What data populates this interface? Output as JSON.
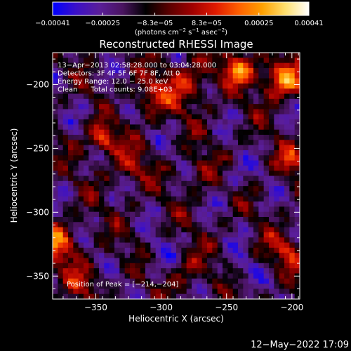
{
  "chart_data": {
    "type": "heatmap",
    "title": "Reconstructed RHESSI Image",
    "xlabel": "Heliocentric X (arcsec)",
    "ylabel": "Heliocentric Y (arcsec)",
    "xlim": [
      -383,
      -194
    ],
    "ylim": [
      -368,
      -175
    ],
    "x_ticks": [
      -350,
      -300,
      -250,
      -200
    ],
    "y_ticks": [
      -350,
      -300,
      -250,
      -200
    ],
    "x_tick_labels": [
      "−350",
      "−300",
      "−250",
      "−200"
    ],
    "y_tick_labels": [
      "−350",
      "−300",
      "−250",
      "−200"
    ],
    "colorbar": {
      "range": [
        -0.00041,
        0.00041
      ],
      "ticks": [
        -0.00041,
        -0.00025,
        -8.3e-05,
        8.3e-05,
        0.00025,
        0.00041
      ],
      "tick_labels": [
        "−0.00041",
        "−0.00025",
        "−8.3e−05",
        "8.3e−05",
        "0.00025",
        "0.00041"
      ],
      "units_html": "(photons cm<tspan baseline-shift='super' font-size='7'>−2</tspan> s<tspan baseline-shift='super' font-size='7'>−1</tspan> asec<tspan baseline-shift='super' font-size='7'>−2</tspan>)",
      "colormap": [
        "#0000ff",
        "#3b10c8",
        "#5a1e9a",
        "#4a1460",
        "#000000",
        "#5a0000",
        "#a00000",
        "#e01a00",
        "#ff6000",
        "#ffa000",
        "#ffe070",
        "#ffffff"
      ]
    },
    "info_lines": [
      "13−Apr−2013 02:58:28.000 to 03:04:28.000",
      "Detectors: 3F 4F 5F 6F 7F 8F, Att 0",
      "Energy Range: 12.0 − 25.0 keV",
      "Clean      Total counts: 9.08E+03"
    ],
    "peak_label": "Position of Peak = [−214,−204]",
    "peak_position": [
      -214,
      -204
    ],
    "hotspots": [
      {
        "x": -208,
        "y": -196,
        "value": 0.00041,
        "spread": 10
      },
      {
        "x": -240,
        "y": -188,
        "value": 0.00034,
        "spread": 9
      },
      {
        "x": -280,
        "y": -200,
        "value": 0.00024,
        "spread": 12
      },
      {
        "x": -310,
        "y": -210,
        "value": 0.00022,
        "spread": 11
      },
      {
        "x": -345,
        "y": -243,
        "value": 0.00032,
        "spread": 8
      },
      {
        "x": -380,
        "y": -325,
        "value": 0.0003,
        "spread": 12
      },
      {
        "x": -325,
        "y": -265,
        "value": 0.00018,
        "spread": 10
      },
      {
        "x": -270,
        "y": -270,
        "value": 0.00016,
        "spread": 9
      },
      {
        "x": -200,
        "y": -260,
        "value": 0.00022,
        "spread": 8
      },
      {
        "x": -205,
        "y": -330,
        "value": 0.0002,
        "spread": 10
      },
      {
        "x": -280,
        "y": -345,
        "value": 0.00016,
        "spread": 10
      },
      {
        "x": -360,
        "y": -355,
        "value": 0.00015,
        "spread": 9
      }
    ]
  },
  "footer": {
    "timestamp": "12−May−2022 17:09"
  }
}
